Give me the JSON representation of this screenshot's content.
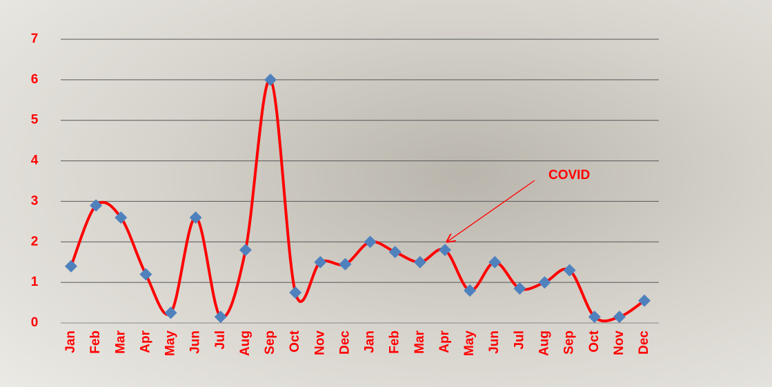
{
  "chart_data": {
    "type": "line",
    "categories": [
      "Jan",
      "Feb",
      "Mar",
      "Apr",
      "May",
      "Jun",
      "Jul",
      "Aug",
      "Sep",
      "Oct",
      "Nov",
      "Dec",
      "Jan",
      "Feb",
      "Mar",
      "Apr",
      "May",
      "Jun",
      "Jul",
      "Aug",
      "Sep",
      "Oct",
      "Nov",
      "Dec"
    ],
    "series": [
      {
        "color": "#ff0000",
        "marker_color": "#4f81bd",
        "values": [
          1.4,
          2.9,
          2.6,
          1.2,
          0.25,
          2.6,
          0.15,
          1.8,
          6.0,
          0.75,
          1.5,
          1.45,
          2.0,
          1.75,
          1.5,
          1.8,
          0.8,
          1.5,
          0.85,
          1.0,
          1.3,
          0.15,
          0.15,
          0.55
        ]
      }
    ],
    "ylim": [
      0,
      7
    ],
    "yticks": [
      0,
      1,
      2,
      3,
      4,
      5,
      6,
      7
    ],
    "grid": true,
    "annotations": [
      {
        "text": "COVID",
        "category_index": 15
      }
    ]
  }
}
